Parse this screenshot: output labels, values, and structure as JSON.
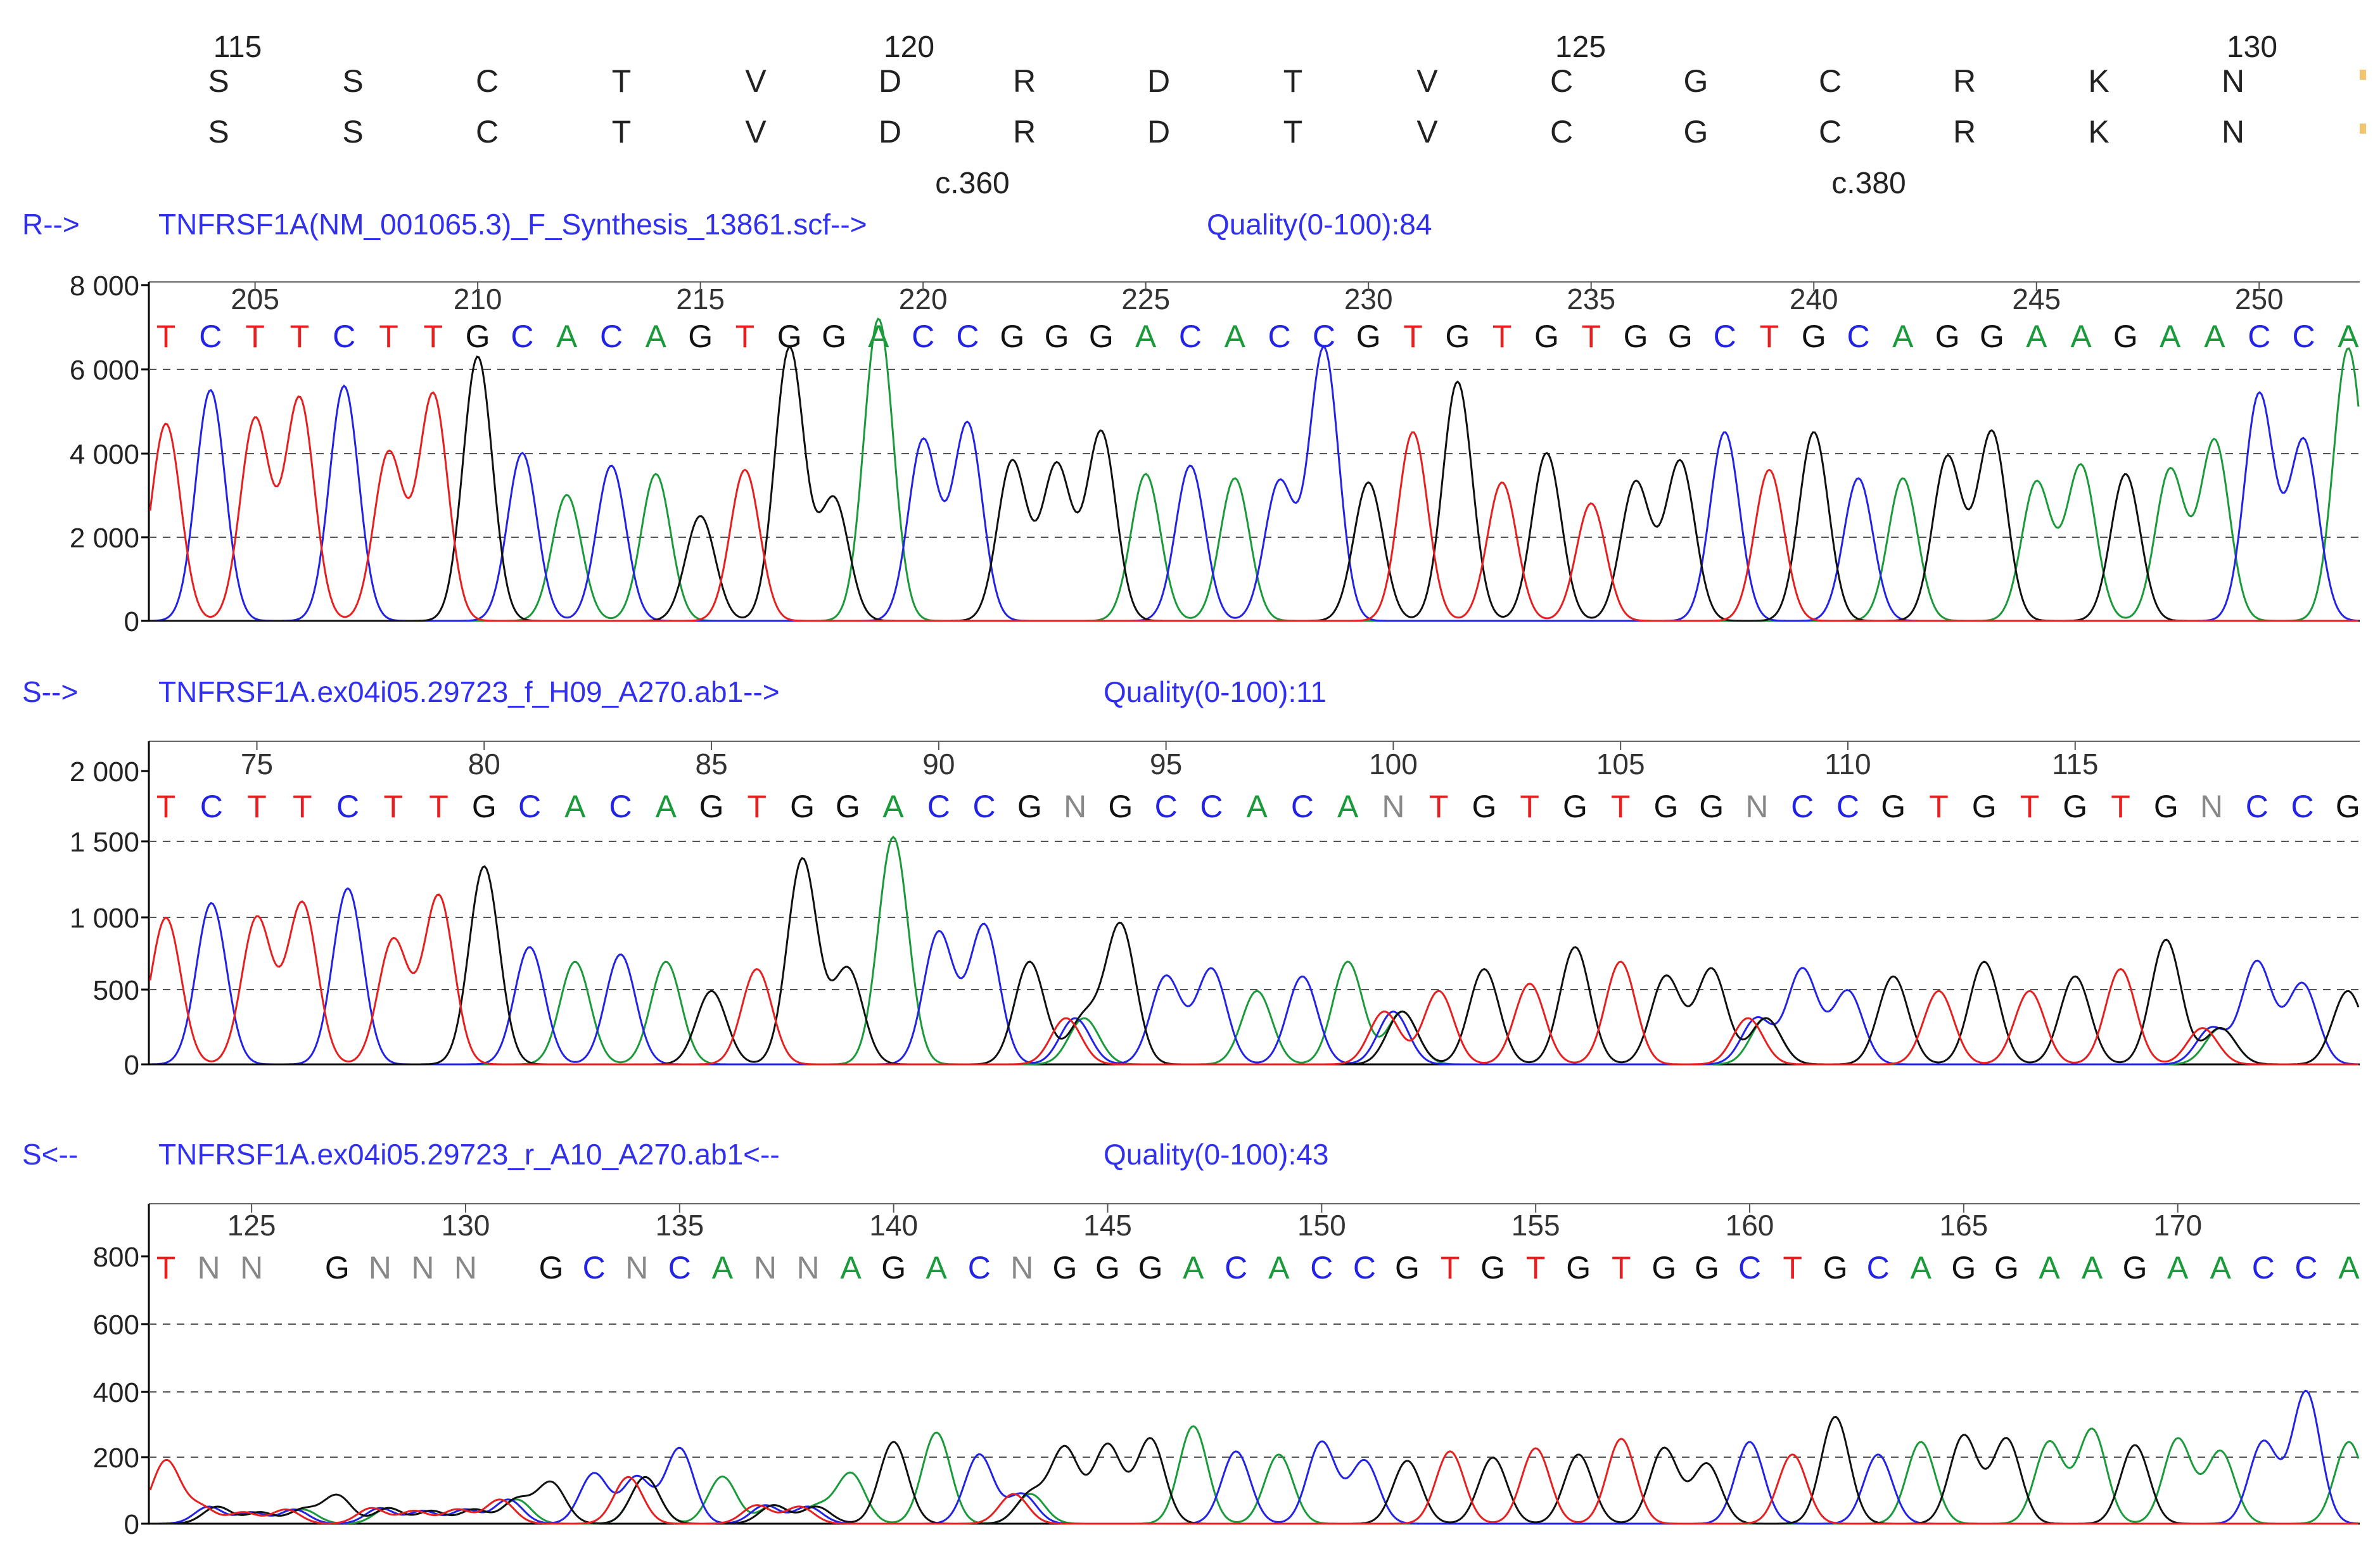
{
  "colors": {
    "A": "#1a9a3a",
    "C": "#2323e6",
    "G": "#111111",
    "T": "#e62020",
    "N": "#888888",
    "header_text": "#3030ee",
    "axis": "#000000",
    "grid": "#555555",
    "ruler_text": "#333333"
  },
  "alignment": {
    "positions": [
      "115",
      "120",
      "125",
      "130"
    ],
    "ref_aa": [
      "S",
      "S",
      "C",
      "T",
      "V",
      "D",
      "R",
      "D",
      "T",
      "V",
      "C",
      "G",
      "C",
      "R",
      "K",
      "N"
    ],
    "sample_aa": [
      "S",
      "S",
      "C",
      "T",
      "V",
      "D",
      "R",
      "D",
      "T",
      "V",
      "C",
      "G",
      "C",
      "R",
      "K",
      "N"
    ],
    "cdna": [
      "c.360",
      "c.380"
    ]
  },
  "traces": [
    {
      "direction": "R-->",
      "filename": "TNFRSF1A(NM_001065.3)_F_Synthesis_13861.scf-->",
      "quality": "Quality(0-100):84",
      "y_ticks": [
        "8 000",
        "6 000",
        "4 000",
        "2 000",
        "0"
      ],
      "y_max": 8000,
      "ruler": [
        "205",
        "210",
        "215",
        "220",
        "225",
        "230",
        "235",
        "240",
        "245",
        "250"
      ],
      "bases": [
        "T",
        "C",
        "T",
        "T",
        "C",
        "T",
        "T",
        "G",
        "C",
        "A",
        "C",
        "A",
        "G",
        "T",
        "G",
        "G",
        "A",
        "C",
        "C",
        "G",
        "G",
        "G",
        "A",
        "C",
        "A",
        "C",
        "C",
        "G",
        "T",
        "G",
        "T",
        "G",
        "T",
        "G",
        "G",
        "C",
        "T",
        "G",
        "C",
        "A",
        "G",
        "G",
        "A",
        "A",
        "G",
        "A",
        "A",
        "C",
        "C",
        "A"
      ],
      "peaks": [
        4700,
        5500,
        4800,
        5300,
        5600,
        4000,
        5400,
        6300,
        4000,
        3000,
        3700,
        3500,
        2500,
        3600,
        6500,
        2900,
        7200,
        4300,
        4700,
        3800,
        3700,
        4500,
        3500,
        3700,
        3400,
        3300,
        6500,
        3300,
        4500,
        5700,
        3300,
        4000,
        2800,
        3300,
        3800,
        4500,
        3600,
        4500,
        3400,
        3400,
        3900,
        4500,
        3300,
        3700,
        3500,
        3600,
        4300,
        5400,
        4300,
        6500
      ]
    },
    {
      "direction": "S-->",
      "filename": "TNFRSF1A.ex04i05.29723_f_H09_A270.ab1-->",
      "quality": "Quality(0-100):11",
      "y_ticks": [
        "2 000",
        "1 500",
        "1 000",
        "500",
        "0"
      ],
      "y_max": 2000,
      "ruler": [
        "75",
        "80",
        "85",
        "90",
        "95",
        "100",
        "105",
        "110",
        "115"
      ],
      "bases": [
        "T",
        "C",
        "T",
        "T",
        "C",
        "T",
        "T",
        "G",
        "C",
        "A",
        "C",
        "A",
        "G",
        "T",
        "G",
        "G",
        "A",
        "C",
        "C",
        "G",
        "N",
        "G",
        "C",
        "C",
        "A",
        "C",
        "A",
        "N",
        "T",
        "G",
        "T",
        "G",
        "T",
        "G",
        "G",
        "N",
        "C",
        "C",
        "G",
        "T",
        "G",
        "T",
        "G",
        "T",
        "G",
        "N",
        "C",
        "C",
        "G"
      ],
      "peaks": [
        1000,
        1100,
        1000,
        1100,
        1200,
        850,
        1150,
        1350,
        800,
        700,
        750,
        700,
        500,
        650,
        1400,
        650,
        1550,
        900,
        950,
        700,
        700,
        950,
        600,
        650,
        500,
        600,
        700,
        800,
        500,
        650,
        550,
        800,
        700,
        600,
        650,
        700,
        650,
        500,
        600,
        500,
        700,
        500,
        600,
        650,
        850,
        550,
        700,
        550,
        500
      ]
    },
    {
      "direction": "S<--",
      "filename": "TNFRSF1A.ex04i05.29723_r_A10_A270.ab1<--",
      "quality": "Quality(0-100):43",
      "y_ticks": [
        "800",
        "600",
        "400",
        "200",
        "0"
      ],
      "y_max": 850,
      "ruler": [
        "125",
        "130",
        "135",
        "140",
        "145",
        "150",
        "155",
        "160",
        "165",
        "170"
      ],
      "bases": [
        "T",
        "N",
        "N",
        "",
        "G",
        "N",
        "N",
        "N",
        "",
        "G",
        "C",
        "N",
        "C",
        "A",
        "N",
        "N",
        "A",
        "G",
        "A",
        "C",
        "N",
        "G",
        "G",
        "G",
        "A",
        "C",
        "A",
        "C",
        "C",
        "G",
        "T",
        "G",
        "T",
        "G",
        "T",
        "G",
        "G",
        "C",
        "T",
        "G",
        "C",
        "A",
        "G",
        "G",
        "A",
        "A",
        "G",
        "A",
        "A",
        "C",
        "C",
        "A"
      ],
      "peaks": [
        200,
        120,
        80,
        100,
        90,
        110,
        90,
        100,
        170,
        130,
        160,
        330,
        240,
        150,
        130,
        120,
        160,
        260,
        290,
        220,
        210,
        240,
        250,
        270,
        310,
        230,
        220,
        260,
        200,
        200,
        230,
        210,
        240,
        220,
        270,
        240,
        190,
        260,
        220,
        340,
        220,
        260,
        280,
        270,
        260,
        300,
        250,
        270,
        230,
        260,
        420,
        260
      ]
    }
  ]
}
